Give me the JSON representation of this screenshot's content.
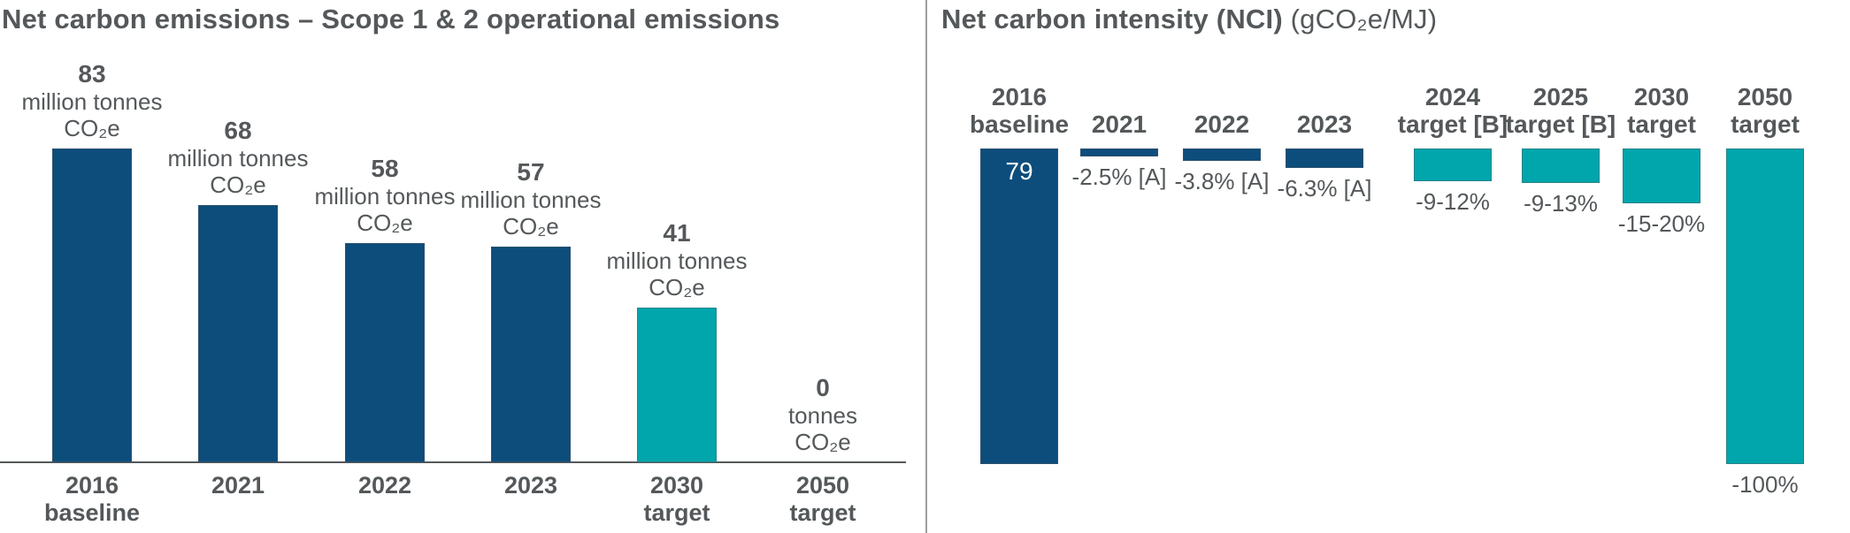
{
  "page": {
    "background": "#ffffff",
    "text_color": "#54585a",
    "colors": {
      "navy": "#0d4d7c",
      "teal": "#00a6ac",
      "divider": "#9b9d9f",
      "axis": "#54585a",
      "bar_inside_text": "#ffffff"
    }
  },
  "chart_data": [
    {
      "type": "bar",
      "title": "Net carbon emissions – Scope 1 & 2 operational emissions",
      "ylabel": "",
      "xlabel": "",
      "unit": "million tonnes CO₂e",
      "categories": [
        "2016 baseline",
        "2021",
        "2022",
        "2023",
        "2030 target",
        "2050 target"
      ],
      "values": [
        83,
        68,
        58,
        57,
        41,
        0
      ],
      "ylim": [
        0,
        90
      ],
      "grid": false,
      "legend": false,
      "bar_color_names": [
        "navy",
        "navy",
        "navy",
        "navy",
        "teal",
        "none"
      ],
      "category_label_lines": [
        [
          "2016",
          "baseline"
        ],
        [
          "2021"
        ],
        [
          "2022"
        ],
        [
          "2023"
        ],
        [
          "2030",
          "target"
        ],
        [
          "2050",
          "target"
        ]
      ],
      "value_label_lines": [
        [
          "83",
          "million tonnes",
          "CO₂e"
        ],
        [
          "68",
          "million tonnes",
          "CO₂e"
        ],
        [
          "58",
          "million tonnes",
          "CO₂e"
        ],
        [
          "57",
          "million tonnes",
          "CO₂e"
        ],
        [
          "41",
          "million tonnes",
          "CO₂e"
        ],
        [
          "0",
          "tonnes",
          "CO₂e"
        ]
      ]
    },
    {
      "type": "bar",
      "title": "Net carbon intensity (NCI)",
      "title_unit": " (gCO₂e/MJ)",
      "baseline_value": 79,
      "baseline_inside_label": "79",
      "categories": [
        "2016 baseline",
        "2021",
        "2022",
        "2023",
        "2024 target [B]",
        "2025 target [B]",
        "2030 target",
        "2050 target"
      ],
      "pct_change_from_baseline": [
        0,
        -2.5,
        -3.8,
        -6.3,
        -10.5,
        -11,
        -17.5,
        -100
      ],
      "below_labels": [
        "",
        "-2.5% [A]",
        "-3.8% [A]",
        "-6.3% [A]",
        "-9-12%",
        "-9-13%",
        "-15-20%",
        "-100%"
      ],
      "bar_pct_height": [
        100,
        2.5,
        3.8,
        6.3,
        10.5,
        11,
        17.5,
        100
      ],
      "bar_color_names": [
        "navy",
        "navy",
        "navy",
        "navy",
        "teal",
        "teal",
        "teal",
        "teal"
      ],
      "header_lines": [
        [
          "2016",
          "baseline"
        ],
        [
          "2021"
        ],
        [
          "2022"
        ],
        [
          "2023"
        ],
        [
          "2024",
          "target [B]"
        ],
        [
          "2025",
          "target [B]"
        ],
        [
          "2030",
          "target"
        ],
        [
          "2050",
          "target"
        ]
      ],
      "grid": false,
      "legend": false,
      "notes": "bars hang from a common top line; bar length = % reduction vs 2016 baseline"
    }
  ]
}
